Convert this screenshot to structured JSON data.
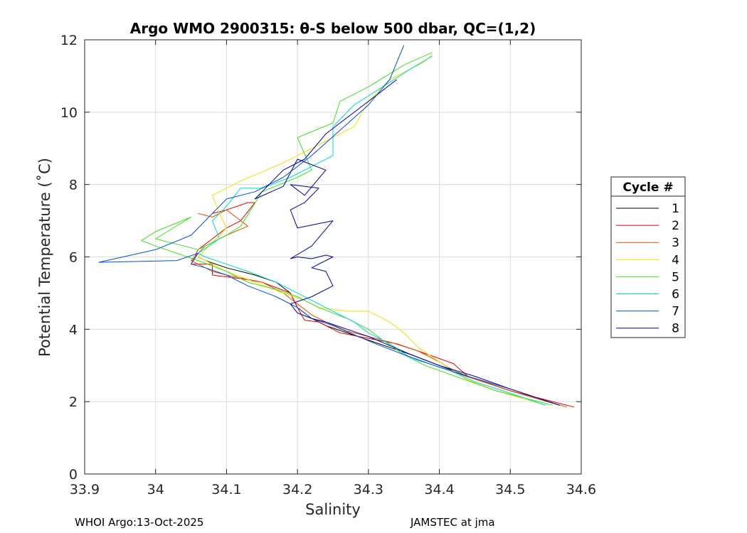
{
  "chart_data": {
    "type": "line",
    "title": "Argo WMO 2900315: θ-S below 500 dbar,  QC=(1,2)",
    "xlabel": "Salinity",
    "ylabel": "Potential Temperature (˚C)",
    "xlim": [
      33.9,
      34.6
    ],
    "ylim": [
      0,
      12
    ],
    "xticks": [
      "33.9",
      "34",
      "34.1",
      "34.2",
      "34.3",
      "34.4",
      "34.5",
      "34.6"
    ],
    "yticks": [
      "0",
      "2",
      "4",
      "6",
      "8",
      "10",
      "12"
    ],
    "xtick_values": [
      33.9,
      34.0,
      34.1,
      34.2,
      34.3,
      34.4,
      34.5,
      34.6
    ],
    "ytick_values": [
      0,
      2,
      4,
      6,
      8,
      10,
      12
    ],
    "grid": true,
    "legend": {
      "title": "Cycle #",
      "placement": "right"
    },
    "series": [
      {
        "name": "1",
        "color": "#000000",
        "x": [
          34.57,
          34.5,
          34.44,
          34.4,
          34.36,
          34.33,
          34.3,
          34.27,
          34.24,
          34.22,
          34.2,
          34.19,
          34.17,
          34.14,
          34.1,
          34.07,
          34.06
        ],
        "y": [
          1.9,
          2.3,
          2.7,
          3.0,
          3.3,
          3.5,
          3.7,
          3.9,
          4.1,
          4.3,
          4.6,
          5.0,
          5.3,
          5.5,
          5.7,
          5.9,
          6.0
        ]
      },
      {
        "name": "2",
        "color": "#e00000",
        "x": [
          34.59,
          34.5,
          34.44,
          34.42,
          34.37,
          34.34,
          34.3,
          34.26,
          34.23,
          34.21,
          34.2,
          34.19,
          34.15,
          34.12,
          34.08,
          34.08,
          34.05,
          34.06,
          34.08,
          34.1,
          34.12,
          34.14,
          34.13,
          34.1,
          34.08
        ],
        "y": [
          1.85,
          2.3,
          2.7,
          3.05,
          3.4,
          3.6,
          3.75,
          3.9,
          4.2,
          4.25,
          4.6,
          5.0,
          5.3,
          5.4,
          5.5,
          5.8,
          5.8,
          6.2,
          6.5,
          6.8,
          7.0,
          7.5,
          7.5,
          7.3,
          7.2
        ]
      },
      {
        "name": "3",
        "color": "#e05000",
        "x": [
          34.58,
          34.5,
          34.43,
          34.4,
          34.37,
          34.33,
          34.3,
          34.27,
          34.24,
          34.22,
          34.2,
          34.18,
          34.15,
          34.1,
          34.08,
          34.05,
          34.07,
          34.1,
          34.13,
          34.12,
          34.1,
          34.08,
          34.06
        ],
        "y": [
          1.85,
          2.3,
          2.75,
          3.1,
          3.4,
          3.65,
          3.8,
          3.95,
          4.2,
          4.4,
          4.7,
          5.0,
          5.3,
          5.5,
          5.6,
          5.9,
          6.3,
          6.6,
          6.85,
          7.0,
          7.3,
          7.1,
          7.2
        ]
      },
      {
        "name": "4",
        "color": "#f0e000",
        "x": [
          34.55,
          34.48,
          34.44,
          34.4,
          34.37,
          34.35,
          34.33,
          34.3,
          34.27,
          34.23,
          34.21,
          34.18,
          34.14,
          34.1,
          34.08,
          34.06,
          34.08,
          34.1,
          34.09,
          34.08,
          34.12,
          34.18,
          34.23,
          34.28,
          34.3,
          34.33,
          34.38,
          34.39
        ],
        "y": [
          1.9,
          2.3,
          2.6,
          3.1,
          3.5,
          3.9,
          4.2,
          4.5,
          4.5,
          4.6,
          4.8,
          5.0,
          5.3,
          5.6,
          5.8,
          6.0,
          6.4,
          6.8,
          7.2,
          7.7,
          8.1,
          8.6,
          9.1,
          9.6,
          10.3,
          10.9,
          11.4,
          11.6
        ]
      },
      {
        "name": "5",
        "color": "#40e020",
        "x": [
          34.56,
          34.48,
          34.43,
          34.38,
          34.35,
          34.32,
          34.3,
          34.27,
          34.23,
          34.2,
          34.17,
          34.13,
          34.1,
          34.06,
          34.0,
          33.98,
          34.0,
          34.05,
          34.0,
          34.06,
          34.1,
          34.12,
          34.15,
          34.2,
          34.22,
          34.2,
          34.25,
          34.26,
          34.28,
          34.3,
          34.35,
          34.39
        ],
        "y": [
          1.9,
          2.3,
          2.65,
          3.0,
          3.3,
          3.7,
          4.0,
          4.3,
          4.6,
          4.9,
          5.1,
          5.3,
          5.6,
          5.9,
          6.3,
          6.45,
          6.7,
          7.1,
          6.5,
          6.2,
          6.6,
          6.85,
          7.8,
          8.2,
          8.4,
          9.3,
          9.7,
          10.3,
          10.5,
          10.7,
          11.3,
          11.65
        ]
      },
      {
        "name": "6",
        "color": "#00d8d8",
        "x": [
          34.55,
          34.49,
          34.45,
          34.41,
          34.36,
          34.33,
          34.3,
          34.28,
          34.25,
          34.22,
          34.2,
          34.17,
          34.13,
          34.1,
          34.07,
          34.06,
          34.09,
          34.08,
          34.1,
          34.12,
          34.15,
          34.19,
          34.22,
          34.25,
          34.25,
          34.28,
          34.32,
          34.36,
          34.39
        ],
        "y": [
          1.9,
          2.3,
          2.55,
          2.9,
          3.2,
          3.6,
          3.9,
          4.2,
          4.5,
          4.8,
          5.0,
          5.3,
          5.6,
          5.8,
          6.0,
          6.1,
          6.5,
          7.0,
          7.4,
          7.9,
          7.9,
          8.2,
          8.5,
          8.8,
          9.6,
          10.2,
          10.7,
          11.2,
          11.55
        ]
      },
      {
        "name": "7",
        "color": "#0050e0",
        "x": [
          34.57,
          34.5,
          34.44,
          34.4,
          34.35,
          34.31,
          34.28,
          34.25,
          34.22,
          34.2,
          34.17,
          34.13,
          34.1,
          34.07,
          34.05,
          34.06,
          34.03,
          33.92,
          34.0,
          34.05,
          34.08,
          34.1,
          34.14,
          34.18,
          34.22,
          34.26,
          34.3,
          34.33,
          34.35
        ],
        "y": [
          1.9,
          2.35,
          2.7,
          2.95,
          3.3,
          3.6,
          3.85,
          4.1,
          4.3,
          4.6,
          4.9,
          5.2,
          5.5,
          5.7,
          5.8,
          6.1,
          5.9,
          5.85,
          6.2,
          6.6,
          7.2,
          7.6,
          7.8,
          8.2,
          8.8,
          9.5,
          10.2,
          10.9,
          11.85
        ]
      },
      {
        "name": "8",
        "color": "#0000a0",
        "x": [
          34.57,
          34.5,
          34.45,
          34.4,
          34.36,
          34.33,
          34.3,
          34.27,
          34.24,
          34.22,
          34.2,
          34.19,
          34.22,
          34.25,
          34.24,
          34.22,
          34.25,
          34.24,
          34.22,
          34.2,
          34.19,
          34.22,
          34.25,
          34.2,
          34.19,
          34.21,
          34.23,
          34.19,
          34.21,
          34.24,
          34.2,
          34.18,
          34.14,
          34.18,
          34.21,
          34.24,
          34.3,
          34.34
        ],
        "y": [
          1.9,
          2.35,
          2.7,
          3.0,
          3.3,
          3.55,
          3.8,
          4.0,
          4.2,
          4.3,
          4.45,
          4.7,
          4.9,
          5.2,
          5.6,
          5.7,
          6.0,
          6.05,
          5.95,
          6.0,
          5.95,
          6.3,
          7.0,
          6.8,
          7.3,
          7.5,
          7.9,
          8.0,
          7.7,
          8.4,
          8.7,
          7.95,
          7.6,
          8.4,
          8.7,
          9.4,
          10.3,
          10.9
        ]
      }
    ]
  },
  "footer": {
    "left": "WHOI Argo:13-Oct-2025",
    "right": "JAMSTEC at jma"
  }
}
